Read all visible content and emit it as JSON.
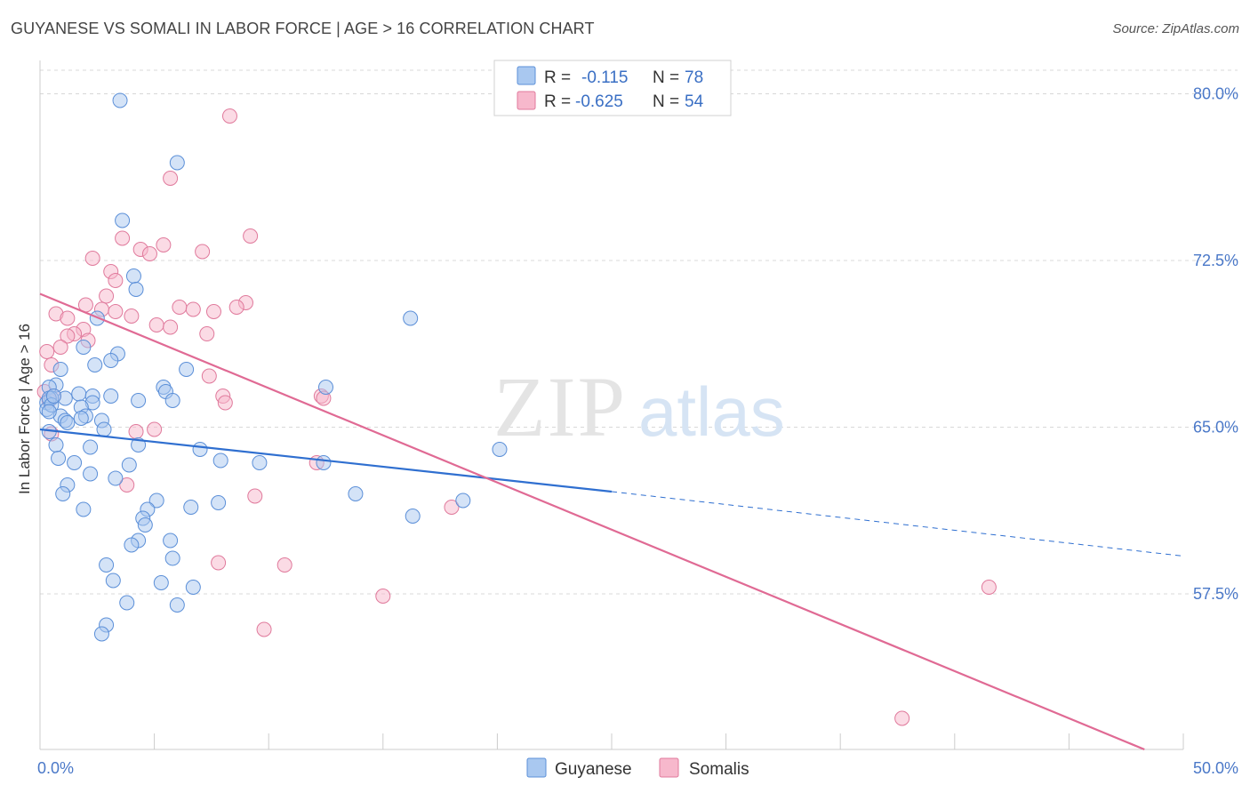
{
  "title": "GUYANESE VS SOMALI IN LABOR FORCE | AGE > 16 CORRELATION CHART",
  "source": "Source: ZipAtlas.com",
  "watermark": {
    "zip": "ZIP",
    "atlas": "atlas"
  },
  "colors": {
    "guyanese_fill": "#a9c8f0",
    "guyanese_stroke": "#5b8fd8",
    "guyanese_line": "#2f6fd0",
    "somali_fill": "#f7b8cc",
    "somali_stroke": "#e07a9c",
    "somali_line": "#e06a94",
    "tick_text": "#4a78c8",
    "grid": "#d8d8d8"
  },
  "legend": {
    "rows": [
      {
        "r_label": "R =",
        "r_value": "-0.115",
        "n_label": "N =",
        "n_value": "78",
        "series": "guyanese"
      },
      {
        "r_label": "R =",
        "r_value": "-0.625",
        "n_label": "N =",
        "n_value": "54",
        "series": "somali"
      }
    ]
  },
  "chart_data": {
    "type": "scatter",
    "title": "GUYANESE VS SOMALI IN LABOR FORCE | AGE > 16 CORRELATION CHART",
    "xlabel": "",
    "ylabel": "In Labor Force | Age > 16",
    "xlim": [
      0,
      50
    ],
    "ylim": [
      50.5,
      81.5
    ],
    "x_tick_labels": [
      "0.0%",
      "50.0%"
    ],
    "y_ticks": [
      57.5,
      65.0,
      72.5,
      80.0
    ],
    "y_tick_labels": [
      "57.5%",
      "65.0%",
      "72.5%",
      "80.0%"
    ],
    "grid": "horizontal dashed",
    "legend_placement": "top-center",
    "series": [
      {
        "name": "Guyanese",
        "color": "#a9c8f0",
        "r": -0.115,
        "n": 78,
        "trend": {
          "x0": 0,
          "y0": 64.9,
          "x1": 25,
          "y1": 62.1,
          "dashed_to_x": 50,
          "dashed_to_y": 59.2
        },
        "points": [
          [
            3.5,
            79.7
          ],
          [
            6.0,
            76.9
          ],
          [
            3.6,
            74.3
          ],
          [
            4.1,
            71.8
          ],
          [
            4.2,
            71.2
          ],
          [
            16.2,
            69.9
          ],
          [
            2.5,
            69.9
          ],
          [
            1.9,
            68.6
          ],
          [
            3.4,
            68.3
          ],
          [
            3.1,
            68.0
          ],
          [
            2.4,
            67.8
          ],
          [
            0.9,
            67.6
          ],
          [
            6.4,
            67.6
          ],
          [
            0.7,
            66.9
          ],
          [
            0.4,
            66.8
          ],
          [
            5.4,
            66.8
          ],
          [
            12.5,
            66.8
          ],
          [
            5.5,
            66.6
          ],
          [
            1.7,
            66.5
          ],
          [
            3.1,
            66.4
          ],
          [
            2.3,
            66.4
          ],
          [
            0.5,
            66.3
          ],
          [
            0.3,
            66.1
          ],
          [
            4.3,
            66.2
          ],
          [
            5.8,
            66.2
          ],
          [
            2.3,
            66.1
          ],
          [
            1.8,
            65.9
          ],
          [
            0.3,
            65.8
          ],
          [
            0.9,
            65.5
          ],
          [
            2.0,
            65.5
          ],
          [
            1.1,
            65.3
          ],
          [
            1.2,
            65.2
          ],
          [
            2.7,
            65.3
          ],
          [
            0.4,
            64.8
          ],
          [
            2.8,
            64.9
          ],
          [
            0.7,
            64.2
          ],
          [
            2.2,
            64.1
          ],
          [
            4.3,
            64.2
          ],
          [
            7.0,
            64.0
          ],
          [
            20.1,
            64.0
          ],
          [
            0.8,
            63.6
          ],
          [
            1.5,
            63.4
          ],
          [
            3.9,
            63.3
          ],
          [
            7.9,
            63.5
          ],
          [
            9.6,
            63.4
          ],
          [
            12.4,
            63.4
          ],
          [
            2.2,
            62.9
          ],
          [
            3.3,
            62.7
          ],
          [
            1.2,
            62.4
          ],
          [
            1.0,
            62.0
          ],
          [
            13.8,
            62.0
          ],
          [
            5.1,
            61.7
          ],
          [
            7.8,
            61.6
          ],
          [
            18.5,
            61.7
          ],
          [
            1.9,
            61.3
          ],
          [
            4.7,
            61.3
          ],
          [
            6.6,
            61.4
          ],
          [
            16.3,
            61.0
          ],
          [
            4.5,
            60.9
          ],
          [
            4.6,
            60.6
          ],
          [
            4.3,
            59.9
          ],
          [
            5.7,
            59.9
          ],
          [
            4.0,
            59.7
          ],
          [
            5.8,
            59.1
          ],
          [
            2.9,
            58.8
          ],
          [
            3.2,
            58.1
          ],
          [
            5.3,
            58.0
          ],
          [
            6.7,
            57.8
          ],
          [
            3.8,
            57.1
          ],
          [
            6.0,
            57.0
          ],
          [
            2.9,
            56.1
          ],
          [
            2.7,
            55.7
          ],
          [
            0.4,
            66.3
          ],
          [
            1.1,
            66.3
          ],
          [
            0.5,
            66.0
          ],
          [
            1.8,
            65.4
          ],
          [
            0.4,
            65.7
          ],
          [
            0.6,
            66.4
          ]
        ]
      },
      {
        "name": "Somalis",
        "color": "#f7b8cc",
        "r": -0.625,
        "n": 54,
        "trend": {
          "x0": 0,
          "y0": 71.0,
          "x1": 48.3,
          "y1": 50.5
        },
        "points": [
          [
            8.3,
            79.0
          ],
          [
            5.7,
            76.2
          ],
          [
            3.6,
            73.5
          ],
          [
            9.2,
            73.6
          ],
          [
            5.4,
            73.2
          ],
          [
            4.4,
            73.0
          ],
          [
            4.8,
            72.8
          ],
          [
            7.1,
            72.9
          ],
          [
            2.3,
            72.6
          ],
          [
            3.1,
            72.0
          ],
          [
            3.3,
            71.6
          ],
          [
            2.9,
            70.9
          ],
          [
            9.0,
            70.6
          ],
          [
            2.0,
            70.5
          ],
          [
            2.7,
            70.3
          ],
          [
            3.3,
            70.2
          ],
          [
            8.6,
            70.4
          ],
          [
            6.1,
            70.4
          ],
          [
            6.7,
            70.3
          ],
          [
            7.6,
            70.2
          ],
          [
            4.0,
            70.0
          ],
          [
            0.7,
            70.1
          ],
          [
            1.2,
            69.9
          ],
          [
            5.1,
            69.6
          ],
          [
            5.7,
            69.5
          ],
          [
            1.9,
            69.4
          ],
          [
            1.5,
            69.2
          ],
          [
            1.2,
            69.1
          ],
          [
            7.3,
            69.2
          ],
          [
            2.1,
            68.9
          ],
          [
            0.9,
            68.6
          ],
          [
            0.3,
            68.4
          ],
          [
            0.5,
            67.8
          ],
          [
            7.4,
            67.3
          ],
          [
            12.3,
            66.4
          ],
          [
            8.0,
            66.4
          ],
          [
            12.4,
            66.3
          ],
          [
            8.1,
            66.1
          ],
          [
            0.2,
            66.6
          ],
          [
            0.4,
            66.2
          ],
          [
            4.2,
            64.8
          ],
          [
            5.0,
            64.9
          ],
          [
            0.5,
            64.7
          ],
          [
            12.1,
            63.4
          ],
          [
            3.8,
            62.4
          ],
          [
            9.4,
            61.9
          ],
          [
            18.0,
            61.4
          ],
          [
            7.8,
            58.9
          ],
          [
            10.7,
            58.8
          ],
          [
            15.0,
            57.4
          ],
          [
            41.5,
            57.8
          ],
          [
            9.8,
            55.9
          ],
          [
            37.7,
            51.9
          ],
          [
            0.6,
            66.4
          ]
        ]
      }
    ]
  },
  "bottom_legend": [
    {
      "label": "Guyanese",
      "series": "guyanese"
    },
    {
      "label": "Somalis",
      "series": "somali"
    }
  ]
}
